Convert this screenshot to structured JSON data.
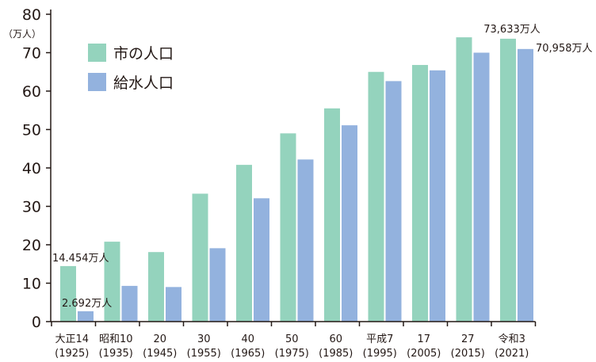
{
  "chart_data": {
    "type": "bar",
    "ylabel": "（万人）",
    "ylim": [
      0,
      80
    ],
    "yticks": [
      "0",
      "10",
      "20",
      "30",
      "40",
      "50",
      "60",
      "70",
      "80"
    ],
    "grid": false,
    "legend_position": "top-left",
    "categories": [
      {
        "line1": "大正14",
        "line2": "(1925)"
      },
      {
        "line1": "昭和10",
        "line2": "(1935)"
      },
      {
        "line1": "20",
        "line2": "(1945)"
      },
      {
        "line1": "30",
        "line2": "(1955)"
      },
      {
        "line1": "40",
        "line2": "(1965)"
      },
      {
        "line1": "50",
        "line2": "(1975)"
      },
      {
        "line1": "60",
        "line2": "(1985)"
      },
      {
        "line1": "平成7",
        "line2": "(1995)"
      },
      {
        "line1": "17",
        "line2": "(2005)"
      },
      {
        "line1": "27",
        "line2": "(2015)"
      },
      {
        "line1": "令和3",
        "line2": "(2021)"
      }
    ],
    "series": [
      {
        "name": "市の人口",
        "color": "#94d3bd",
        "values": [
          14.454,
          20.8,
          18.1,
          33.3,
          40.8,
          49.0,
          55.5,
          65.0,
          66.8,
          74.0,
          73.633
        ]
      },
      {
        "name": "給水人口",
        "color": "#93b2de",
        "values": [
          2.692,
          9.3,
          9.0,
          19.1,
          32.1,
          42.2,
          51.1,
          62.6,
          65.4,
          70.0,
          70.958
        ]
      }
    ],
    "annotations": [
      {
        "text": "14.454万人",
        "series": 0,
        "index": 0
      },
      {
        "text": "2.692万人",
        "series": 1,
        "index": 0
      },
      {
        "text": "73,633万人",
        "series": 0,
        "index": 10
      },
      {
        "text": "70,958万人",
        "series": 1,
        "index": 10
      }
    ],
    "axis_color": "#231815"
  }
}
